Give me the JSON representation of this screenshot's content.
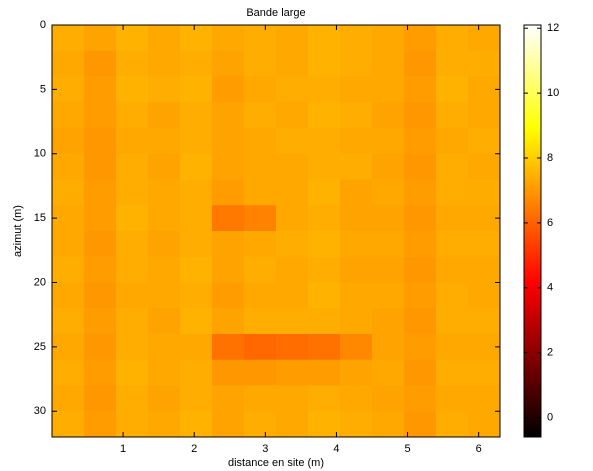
{
  "chart_data": {
    "type": "heatmap",
    "title": "Bande large",
    "xlabel": "distance en site (m)",
    "ylabel": "azimut (m)",
    "colormap": "hot",
    "y_reversed": true,
    "x": [
      0.225,
      0.675,
      1.125,
      1.575,
      2.025,
      2.475,
      2.925,
      3.375,
      3.825,
      4.275,
      4.725,
      5.175,
      5.625,
      6.075
    ],
    "y": [
      1,
      3,
      5,
      7,
      9,
      11,
      13,
      15,
      17,
      19,
      21,
      23,
      25,
      27,
      29,
      31
    ],
    "values": [
      [
        7.4,
        7.2,
        7.5,
        7.3,
        7.5,
        7.3,
        7.4,
        7.3,
        7.5,
        7.4,
        7.3,
        7.1,
        7.4,
        7.3
      ],
      [
        7.3,
        7.0,
        7.4,
        7.3,
        7.4,
        7.2,
        7.4,
        7.3,
        7.5,
        7.4,
        7.3,
        7.0,
        7.4,
        7.4
      ],
      [
        7.4,
        7.1,
        7.5,
        7.4,
        7.5,
        7.1,
        7.3,
        7.4,
        7.4,
        7.3,
        7.3,
        7.1,
        7.5,
        7.3
      ],
      [
        7.3,
        7.1,
        7.4,
        7.2,
        7.4,
        7.2,
        7.4,
        7.3,
        7.5,
        7.4,
        7.2,
        7.0,
        7.4,
        7.3
      ],
      [
        7.2,
        7.0,
        7.3,
        7.3,
        7.4,
        7.2,
        7.3,
        7.4,
        7.4,
        7.3,
        7.3,
        7.1,
        7.3,
        7.4
      ],
      [
        7.3,
        7.0,
        7.4,
        7.2,
        7.5,
        7.2,
        7.3,
        7.3,
        7.4,
        7.4,
        7.2,
        7.0,
        7.4,
        7.3
      ],
      [
        7.4,
        7.1,
        7.4,
        7.3,
        7.4,
        7.1,
        7.3,
        7.3,
        7.5,
        7.2,
        7.3,
        7.1,
        7.4,
        7.4
      ],
      [
        7.3,
        7.1,
        7.5,
        7.3,
        7.4,
        6.4,
        6.6,
        7.3,
        7.4,
        7.2,
        7.2,
        7.0,
        7.3,
        7.3
      ],
      [
        7.3,
        7.0,
        7.4,
        7.2,
        7.4,
        7.2,
        7.3,
        7.4,
        7.5,
        7.3,
        7.3,
        7.1,
        7.4,
        7.4
      ],
      [
        7.4,
        7.1,
        7.4,
        7.3,
        7.5,
        7.2,
        7.4,
        7.3,
        7.4,
        7.2,
        7.2,
        7.0,
        7.3,
        7.3
      ],
      [
        7.3,
        7.0,
        7.3,
        7.3,
        7.4,
        7.1,
        7.3,
        7.3,
        7.5,
        7.3,
        7.3,
        7.1,
        7.4,
        7.3
      ],
      [
        7.4,
        7.1,
        7.4,
        7.2,
        7.5,
        7.2,
        7.4,
        7.4,
        7.4,
        7.3,
        7.2,
        7.0,
        7.4,
        7.4
      ],
      [
        7.3,
        7.0,
        7.4,
        7.3,
        7.3,
        6.3,
        6.1,
        6.2,
        6.3,
        6.7,
        7.2,
        7.1,
        7.3,
        7.3
      ],
      [
        7.4,
        7.1,
        7.5,
        7.3,
        7.4,
        7.0,
        7.0,
        7.1,
        7.1,
        7.2,
        7.3,
        7.0,
        7.4,
        7.4
      ],
      [
        7.3,
        7.0,
        7.4,
        7.2,
        7.4,
        7.2,
        7.3,
        7.3,
        7.4,
        7.3,
        7.2,
        7.1,
        7.3,
        7.3
      ],
      [
        7.4,
        7.1,
        7.4,
        7.3,
        7.5,
        7.2,
        7.4,
        7.3,
        7.5,
        7.4,
        7.3,
        7.0,
        7.4,
        7.3
      ]
    ],
    "xlim": [
      0,
      6.3
    ],
    "ylim": [
      0,
      32
    ],
    "xticks": [
      1,
      2,
      3,
      4,
      5,
      6
    ],
    "yticks": [
      0,
      5,
      10,
      15,
      20,
      25,
      30
    ],
    "clim": [
      -0.6,
      12.1
    ],
    "cticks": [
      0,
      2,
      4,
      6,
      8,
      10,
      12
    ]
  }
}
